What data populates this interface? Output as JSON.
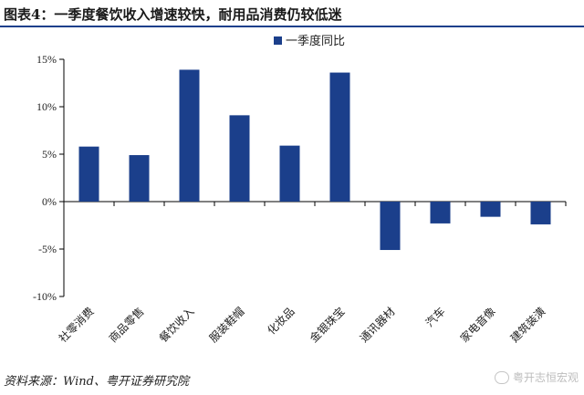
{
  "title": "图表4：一季度餐饮收入增速较快，耐用品消费仍较低迷",
  "source": "资料来源：Wind、粤开证券研究院",
  "watermark": "粤开志恒宏观",
  "colors": {
    "bar": "#1b3f8b",
    "title_rule": "#1b3f8b"
  },
  "chart_data": {
    "type": "bar",
    "categories": [
      "社零消费",
      "商品零售",
      "餐饮收入",
      "服装鞋帽",
      "化妆品",
      "金银珠宝",
      "通讯器材",
      "汽车",
      "家电音像",
      "建筑装潢"
    ],
    "series": [
      {
        "name": "一季度同比",
        "values": [
          5.8,
          4.9,
          13.9,
          9.1,
          5.9,
          13.6,
          -5.1,
          -2.3,
          -1.6,
          -2.4
        ]
      }
    ],
    "ylim": [
      -10,
      15
    ],
    "yticks": [
      "15%",
      "10%",
      "5%",
      "0%",
      "-5%",
      "-10%"
    ],
    "ytick_values": [
      15,
      10,
      5,
      0,
      -5,
      -10
    ],
    "xlabel": "",
    "ylabel": "",
    "legend": "top-right",
    "grid": false
  }
}
